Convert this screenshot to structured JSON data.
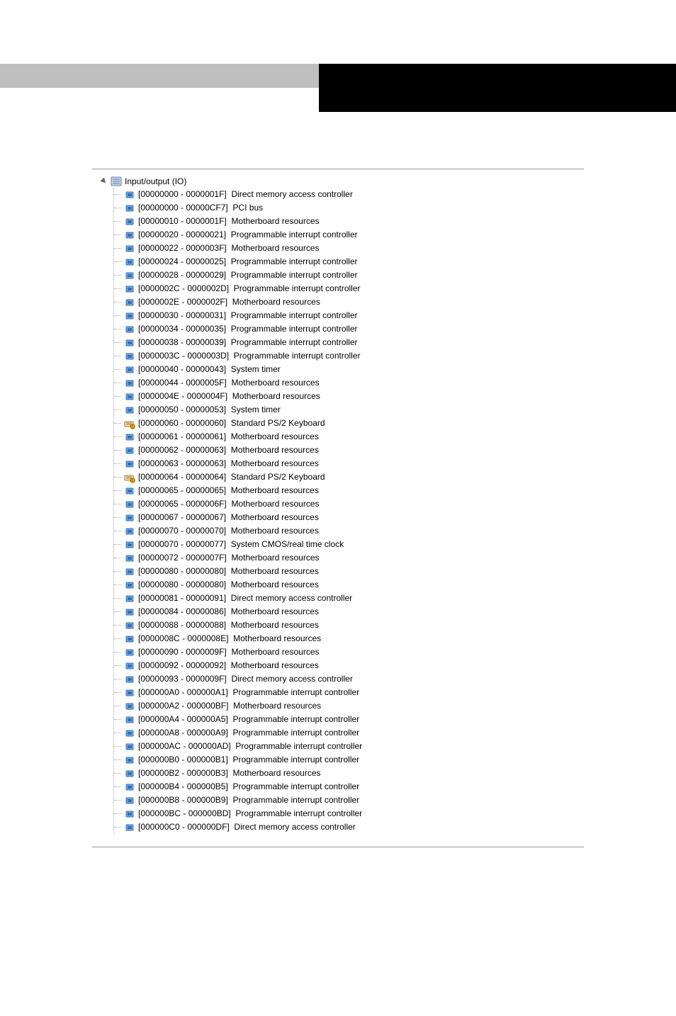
{
  "root": {
    "label": "Input/output (IO)"
  },
  "colors": {
    "icon_chip_body": "#6da8e8",
    "icon_chip_body_dark": "#3d6fa8",
    "icon_chip_pin": "#dedede",
    "icon_kb_body": "#e8e0c8",
    "icon_kb_accent": "#b08030",
    "icon_kb_warn": "#f4a100",
    "root_icon_fill": "#c8d8ec",
    "root_icon_border": "#6080a8",
    "expander_stroke": "#606060"
  },
  "items": [
    {
      "range": "[00000000 - 0000001F]",
      "desc": "Direct memory access controller",
      "icon": "chip"
    },
    {
      "range": "[00000000 - 00000CF7]",
      "desc": "PCI bus",
      "icon": "chip"
    },
    {
      "range": "[00000010 - 0000001F]",
      "desc": "Motherboard resources",
      "icon": "chip"
    },
    {
      "range": "[00000020 - 00000021]",
      "desc": "Programmable interrupt controller",
      "icon": "chip"
    },
    {
      "range": "[00000022 - 0000003F]",
      "desc": "Motherboard resources",
      "icon": "chip"
    },
    {
      "range": "[00000024 - 00000025]",
      "desc": "Programmable interrupt controller",
      "icon": "chip"
    },
    {
      "range": "[00000028 - 00000029]",
      "desc": "Programmable interrupt controller",
      "icon": "chip"
    },
    {
      "range": "[0000002C - 0000002D]",
      "desc": "Programmable interrupt controller",
      "icon": "chip"
    },
    {
      "range": "[0000002E - 0000002F]",
      "desc": "Motherboard resources",
      "icon": "chip"
    },
    {
      "range": "[00000030 - 00000031]",
      "desc": "Programmable interrupt controller",
      "icon": "chip"
    },
    {
      "range": "[00000034 - 00000035]",
      "desc": "Programmable interrupt controller",
      "icon": "chip"
    },
    {
      "range": "[00000038 - 00000039]",
      "desc": "Programmable interrupt controller",
      "icon": "chip"
    },
    {
      "range": "[0000003C - 0000003D]",
      "desc": "Programmable interrupt controller",
      "icon": "chip"
    },
    {
      "range": "[00000040 - 00000043]",
      "desc": "System timer",
      "icon": "chip"
    },
    {
      "range": "[00000044 - 0000005F]",
      "desc": "Motherboard resources",
      "icon": "chip"
    },
    {
      "range": "[0000004E - 0000004F]",
      "desc": "Motherboard resources",
      "icon": "chip"
    },
    {
      "range": "[00000050 - 00000053]",
      "desc": "System timer",
      "icon": "chip"
    },
    {
      "range": "[00000060 - 00000060]",
      "desc": "Standard PS/2 Keyboard",
      "icon": "keyboard"
    },
    {
      "range": "[00000061 - 00000061]",
      "desc": "Motherboard resources",
      "icon": "chip"
    },
    {
      "range": "[00000062 - 00000063]",
      "desc": "Motherboard resources",
      "icon": "chip"
    },
    {
      "range": "[00000063 - 00000063]",
      "desc": "Motherboard resources",
      "icon": "chip"
    },
    {
      "range": "[00000064 - 00000064]",
      "desc": "Standard PS/2 Keyboard",
      "icon": "keyboard"
    },
    {
      "range": "[00000065 - 00000065]",
      "desc": "Motherboard resources",
      "icon": "chip"
    },
    {
      "range": "[00000065 - 0000006F]",
      "desc": "Motherboard resources",
      "icon": "chip"
    },
    {
      "range": "[00000067 - 00000067]",
      "desc": "Motherboard resources",
      "icon": "chip"
    },
    {
      "range": "[00000070 - 00000070]",
      "desc": "Motherboard resources",
      "icon": "chip"
    },
    {
      "range": "[00000070 - 00000077]",
      "desc": "System CMOS/real time clock",
      "icon": "chip"
    },
    {
      "range": "[00000072 - 0000007F]",
      "desc": "Motherboard resources",
      "icon": "chip"
    },
    {
      "range": "[00000080 - 00000080]",
      "desc": "Motherboard resources",
      "icon": "chip"
    },
    {
      "range": "[00000080 - 00000080]",
      "desc": "Motherboard resources",
      "icon": "chip"
    },
    {
      "range": "[00000081 - 00000091]",
      "desc": "Direct memory access controller",
      "icon": "chip"
    },
    {
      "range": "[00000084 - 00000086]",
      "desc": "Motherboard resources",
      "icon": "chip"
    },
    {
      "range": "[00000088 - 00000088]",
      "desc": "Motherboard resources",
      "icon": "chip"
    },
    {
      "range": "[0000008C - 0000008E]",
      "desc": "Motherboard resources",
      "icon": "chip"
    },
    {
      "range": "[00000090 - 0000009F]",
      "desc": "Motherboard resources",
      "icon": "chip"
    },
    {
      "range": "[00000092 - 00000092]",
      "desc": "Motherboard resources",
      "icon": "chip"
    },
    {
      "range": "[00000093 - 0000009F]",
      "desc": "Direct memory access controller",
      "icon": "chip"
    },
    {
      "range": "[000000A0 - 000000A1]",
      "desc": "Programmable interrupt controller",
      "icon": "chip"
    },
    {
      "range": "[000000A2 - 000000BF]",
      "desc": "Motherboard resources",
      "icon": "chip"
    },
    {
      "range": "[000000A4 - 000000A5]",
      "desc": "Programmable interrupt controller",
      "icon": "chip"
    },
    {
      "range": "[000000A8 - 000000A9]",
      "desc": "Programmable interrupt controller",
      "icon": "chip"
    },
    {
      "range": "[000000AC - 000000AD]",
      "desc": "Programmable interrupt controller",
      "icon": "chip"
    },
    {
      "range": "[000000B0 - 000000B1]",
      "desc": "Programmable interrupt controller",
      "icon": "chip"
    },
    {
      "range": "[000000B2 - 000000B3]",
      "desc": "Motherboard resources",
      "icon": "chip"
    },
    {
      "range": "[000000B4 - 000000B5]",
      "desc": "Programmable interrupt controller",
      "icon": "chip"
    },
    {
      "range": "[000000B8 - 000000B9]",
      "desc": "Programmable interrupt controller",
      "icon": "chip"
    },
    {
      "range": "[000000BC - 000000BD]",
      "desc": "Programmable interrupt controller",
      "icon": "chip"
    },
    {
      "range": "[000000C0 - 000000DF]",
      "desc": "Direct memory access controller",
      "icon": "chip"
    }
  ]
}
